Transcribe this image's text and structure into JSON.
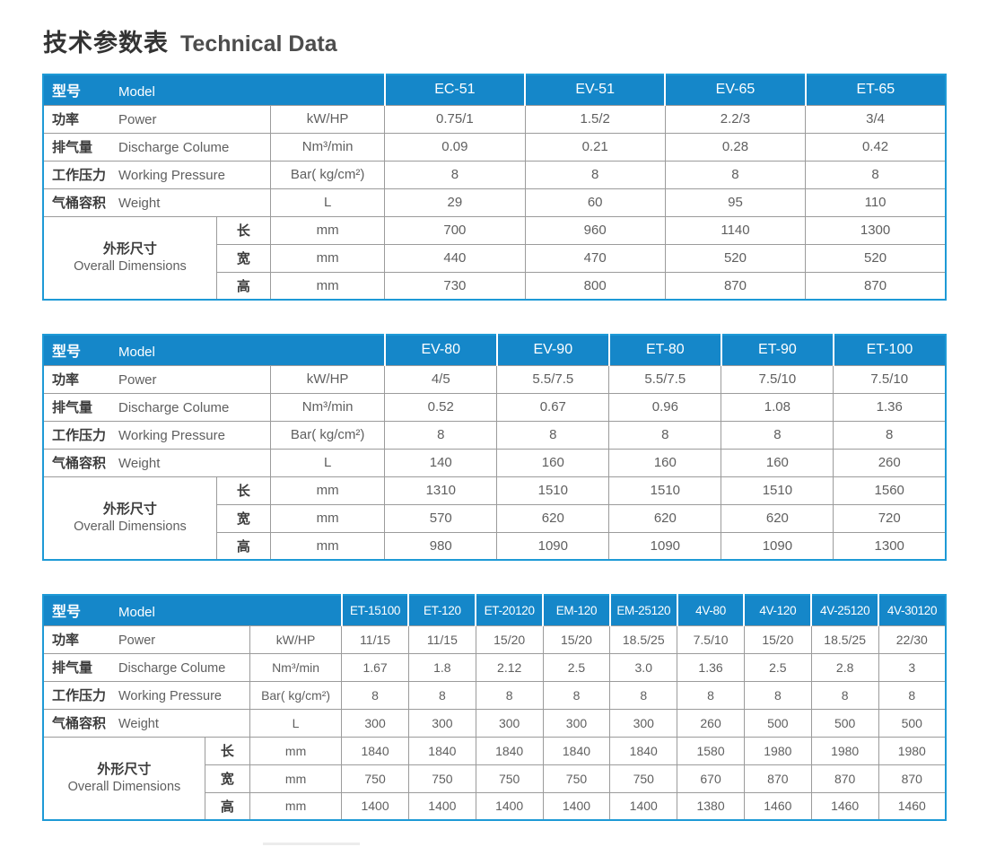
{
  "page": {
    "title_zh": "技术参数表",
    "title_en": "Technical Data"
  },
  "colors": {
    "header_blue": "#1587c9",
    "table_border_blue": "#1e9ad6",
    "grid_gray": "#9b9b9b",
    "label_text": "#3c3c3c",
    "body_text": "#5f5f5f"
  },
  "row_labels": {
    "model": {
      "zh": "型号",
      "en": "Model"
    },
    "power": {
      "zh": "功率",
      "en": "Power",
      "unit": "kW/HP"
    },
    "discharge": {
      "zh": "排气量",
      "en": "Discharge Colume",
      "unit": "Nm³/min"
    },
    "pressure": {
      "zh": "工作压力",
      "en": "Working Pressure",
      "unit": "Bar( kg/cm²)"
    },
    "weight": {
      "zh": "气桶容积",
      "en": "Weight",
      "unit": "L"
    },
    "dimensions": {
      "zh": "外形尺寸",
      "en": "Overall Dimensions",
      "unit": "mm",
      "length_zh": "长",
      "width_zh": "宽",
      "height_zh": "高"
    }
  },
  "tables": [
    {
      "name": "table-1",
      "models": [
        "EC-51",
        "EV-51",
        "EV-65",
        "ET-65"
      ],
      "rows": {
        "power": [
          "0.75/1",
          "1.5/2",
          "2.2/3",
          "3/4"
        ],
        "discharge": [
          "0.09",
          "0.21",
          "0.28",
          "0.42"
        ],
        "pressure": [
          "8",
          "8",
          "8",
          "8"
        ],
        "weight": [
          "29",
          "60",
          "95",
          "110"
        ],
        "length": [
          "700",
          "960",
          "1140",
          "1300"
        ],
        "width": [
          "440",
          "470",
          "520",
          "520"
        ],
        "height": [
          "730",
          "800",
          "870",
          "870"
        ]
      }
    },
    {
      "name": "table-2",
      "models": [
        "EV-80",
        "EV-90",
        "ET-80",
        "ET-90",
        "ET-100"
      ],
      "rows": {
        "power": [
          "4/5",
          "5.5/7.5",
          "5.5/7.5",
          "7.5/10",
          "7.5/10"
        ],
        "discharge": [
          "0.52",
          "0.67",
          "0.96",
          "1.08",
          "1.36"
        ],
        "pressure": [
          "8",
          "8",
          "8",
          "8",
          "8"
        ],
        "weight": [
          "140",
          "160",
          "160",
          "160",
          "260"
        ],
        "length": [
          "1310",
          "1510",
          "1510",
          "1510",
          "1560"
        ],
        "width": [
          "570",
          "620",
          "620",
          "620",
          "720"
        ],
        "height": [
          "980",
          "1090",
          "1090",
          "1090",
          "1300"
        ]
      }
    },
    {
      "name": "table-3",
      "models": [
        "ET-15100",
        "ET-120",
        "ET-20120",
        "EM-120",
        "EM-25120",
        "4V-80",
        "4V-120",
        "4V-25120",
        "4V-30120"
      ],
      "rows": {
        "power": [
          "11/15",
          "11/15",
          "15/20",
          "15/20",
          "18.5/25",
          "7.5/10",
          "15/20",
          "18.5/25",
          "22/30"
        ],
        "discharge": [
          "1.67",
          "1.8",
          "2.12",
          "2.5",
          "3.0",
          "1.36",
          "2.5",
          "2.8",
          "3"
        ],
        "pressure": [
          "8",
          "8",
          "8",
          "8",
          "8",
          "8",
          "8",
          "8",
          "8"
        ],
        "weight": [
          "300",
          "300",
          "300",
          "300",
          "300",
          "260",
          "500",
          "500",
          "500"
        ],
        "length": [
          "1840",
          "1840",
          "1840",
          "1840",
          "1840",
          "1580",
          "1980",
          "1980",
          "1980"
        ],
        "width": [
          "750",
          "750",
          "750",
          "750",
          "750",
          "670",
          "870",
          "870",
          "870"
        ],
        "height": [
          "1400",
          "1400",
          "1400",
          "1400",
          "1400",
          "1380",
          "1460",
          "1460",
          "1460"
        ]
      }
    }
  ]
}
